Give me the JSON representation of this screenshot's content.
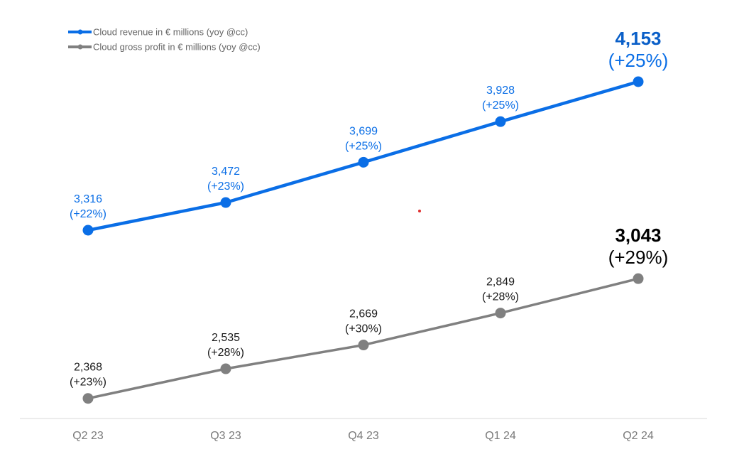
{
  "chart_data": {
    "type": "line",
    "categories": [
      "Q2 23",
      "Q3 23",
      "Q4 23",
      "Q1 24",
      "Q2 24"
    ],
    "series": [
      {
        "name": "Cloud revenue in € millions (yoy @cc)",
        "color": "#0a6ee6",
        "values": [
          3316,
          3472,
          3699,
          3928,
          4153
        ],
        "value_labels": [
          "3,316",
          "3,472",
          "3,699",
          "3,928",
          "4,153"
        ],
        "growth_labels": [
          "(+22%)",
          "(+23%)",
          "(+25%)",
          "(+25%)",
          "(+25%)"
        ]
      },
      {
        "name": "Cloud gross profit in € millions (yoy @cc)",
        "color": "#808080",
        "values": [
          2368,
          2535,
          2669,
          2849,
          3043
        ],
        "value_labels": [
          "2,368",
          "2,535",
          "2,669",
          "2,849",
          "3,043"
        ],
        "growth_labels": [
          "(+23%)",
          "(+28%)",
          "(+30%)",
          "(+28%)",
          "(+29%)"
        ]
      }
    ],
    "legend": "top-left",
    "grid": false,
    "highlight_last_point": true
  }
}
